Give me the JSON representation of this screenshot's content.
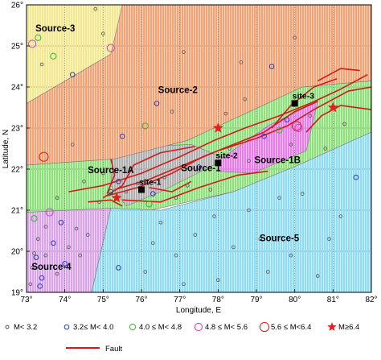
{
  "chart_data": {
    "type": "scatter",
    "xlabel": "Longitude, E",
    "ylabel": "Latitude, N",
    "xlim": [
      73,
      82
    ],
    "ylim": [
      19,
      26
    ],
    "x_ticks": [
      "73°",
      "74°",
      "75°",
      "76°",
      "77°",
      "78°",
      "79°",
      "80°",
      "81°",
      "82°"
    ],
    "y_ticks": [
      "19°",
      "20°",
      "21°",
      "22°",
      "23°",
      "24°",
      "25°",
      "26°"
    ],
    "grid": true,
    "colors": {
      "source_1": "#8ee07a",
      "source_1a": "#b0b0b0",
      "source_1b": "#ea7cec",
      "source_2": "#f5a274",
      "source_3": "#f3e88e",
      "source_4": "#d9a4ea",
      "source_5": "#8fdcf4",
      "fault": "#d11a1a",
      "site": "#000000",
      "star": "#e81e1e"
    },
    "zones": [
      {
        "label": "Source-1",
        "color": "source_1",
        "label_at": [
          77.55,
          21.95
        ],
        "polygon": [
          [
            73,
            22.1
          ],
          [
            75.3,
            22.25
          ],
          [
            77.2,
            22.7
          ],
          [
            80.2,
            24.0
          ],
          [
            82,
            24.15
          ],
          [
            82,
            22.9
          ],
          [
            80.1,
            22.1
          ],
          [
            78.4,
            21.45
          ],
          [
            76,
            20.95
          ],
          [
            73,
            20.95
          ]
        ]
      },
      {
        "label": "Source-1A",
        "color": "source_1a",
        "label_at": [
          75.2,
          21.9
        ],
        "polygon": [
          [
            75.25,
            22.3
          ],
          [
            76.0,
            22.55
          ],
          [
            77.3,
            22.6
          ],
          [
            78.2,
            22.25
          ],
          [
            76.5,
            21.45
          ],
          [
            75.6,
            21.1
          ],
          [
            75.2,
            21.6
          ]
        ]
      },
      {
        "label": "Source-1B",
        "color": "source_1b",
        "label_at": [
          79.55,
          22.15
        ],
        "polygon": [
          [
            78.0,
            22.2
          ],
          [
            79.3,
            23.05
          ],
          [
            80.6,
            23.65
          ],
          [
            80.3,
            22.45
          ],
          [
            78.9,
            21.9
          ],
          [
            78.0,
            21.95
          ]
        ]
      },
      {
        "label": "Source-2",
        "color": "source_2",
        "label_at": [
          76.95,
          23.85
        ],
        "polygon": [
          [
            73,
            26
          ],
          [
            80.0,
            26
          ],
          [
            82,
            26
          ],
          [
            82,
            24.15
          ],
          [
            80.2,
            24.0
          ],
          [
            77.2,
            22.7
          ],
          [
            75.3,
            22.25
          ],
          [
            73,
            22.1
          ],
          [
            73,
            23.6
          ],
          [
            75.2,
            24.8
          ]
        ]
      },
      {
        "label": "Source-3",
        "color": "source_3",
        "label_at": [
          73.75,
          25.35
        ],
        "polygon": [
          [
            73,
            26
          ],
          [
            75.5,
            26
          ],
          [
            75.2,
            24.8
          ],
          [
            73,
            23.6
          ]
        ]
      },
      {
        "label": "Source-4",
        "color": "source_4",
        "label_at": [
          73.65,
          19.55
        ],
        "polygon": [
          [
            73,
            20.95
          ],
          [
            75.2,
            21.05
          ],
          [
            74.7,
            19
          ],
          [
            73,
            19
          ]
        ]
      },
      {
        "label": "Source-5",
        "color": "source_5",
        "label_at": [
          79.6,
          20.25
        ],
        "polygon": [
          [
            75.2,
            21.05
          ],
          [
            76.5,
            21.0
          ],
          [
            78.4,
            21.45
          ],
          [
            80.1,
            22.1
          ],
          [
            82,
            22.9
          ],
          [
            82,
            19
          ],
          [
            74.7,
            19
          ]
        ]
      }
    ],
    "faults": [
      [
        [
          75.1,
          21.35
        ],
        [
          75.9,
          21.55
        ],
        [
          76.8,
          21.9
        ],
        [
          77.6,
          22.3
        ],
        [
          78.4,
          22.6
        ],
        [
          79.2,
          22.9
        ],
        [
          80.0,
          23.4
        ],
        [
          80.6,
          23.65
        ]
      ],
      [
        [
          75.3,
          21.5
        ],
        [
          76.2,
          21.75
        ],
        [
          77.1,
          22.1
        ],
        [
          78.0,
          22.45
        ],
        [
          79.0,
          22.75
        ],
        [
          79.8,
          23.05
        ],
        [
          80.5,
          23.45
        ],
        [
          81.4,
          23.9
        ],
        [
          82,
          24.0
        ]
      ],
      [
        [
          74.1,
          21.45
        ],
        [
          75.0,
          21.6
        ],
        [
          76.0,
          21.9
        ],
        [
          77.0,
          22.3
        ],
        [
          77.9,
          22.7
        ],
        [
          78.7,
          23.0
        ],
        [
          79.6,
          23.3
        ],
        [
          80.4,
          23.6
        ],
        [
          81.2,
          23.95
        ],
        [
          81.9,
          24.3
        ]
      ],
      [
        [
          75.0,
          21.3
        ],
        [
          75.5,
          21.6
        ],
        [
          75.8,
          22.1
        ],
        [
          76.5,
          22.4
        ],
        [
          77.4,
          22.55
        ]
      ],
      [
        [
          75.5,
          21.25
        ],
        [
          76.5,
          21.2
        ],
        [
          77.5,
          21.55
        ],
        [
          78.5,
          21.85
        ],
        [
          79.3,
          21.95
        ]
      ],
      [
        [
          75.1,
          21.4
        ],
        [
          75.3,
          21.85
        ],
        [
          75.2,
          22.25
        ]
      ],
      [
        [
          80.3,
          22.9
        ],
        [
          80.7,
          23.3
        ],
        [
          81.2,
          23.55
        ],
        [
          82,
          23.45
        ]
      ],
      [
        [
          79.4,
          23.0
        ],
        [
          79.9,
          23.55
        ],
        [
          80.5,
          24.0
        ],
        [
          81.1,
          24.2
        ]
      ],
      [
        [
          80.6,
          24.15
        ],
        [
          81.2,
          24.45
        ],
        [
          81.7,
          24.4
        ]
      ],
      [
        [
          76.2,
          21.55
        ],
        [
          76.8,
          21.45
        ],
        [
          77.3,
          21.7
        ]
      ],
      [
        [
          74.6,
          21.2
        ],
        [
          75.2,
          21.25
        ],
        [
          75.5,
          21.1
        ]
      ]
    ],
    "sites": [
      {
        "label": "site-1",
        "x": 76.0,
        "y": 21.5
      },
      {
        "label": "site-2",
        "x": 78.0,
        "y": 22.15
      },
      {
        "label": "site-3",
        "x": 80.0,
        "y": 23.6
      }
    ],
    "large_events": [
      {
        "x": 78.0,
        "y": 23.0
      },
      {
        "x": 81.0,
        "y": 23.5
      },
      {
        "x": 75.35,
        "y": 21.3
      }
    ],
    "events": [
      {
        "x": 73.3,
        "y": 25.2,
        "mag": "c"
      },
      {
        "x": 73.15,
        "y": 25.05,
        "mag": "d"
      },
      {
        "x": 75.2,
        "y": 24.95,
        "mag": "d"
      },
      {
        "x": 73.7,
        "y": 24.75,
        "mag": "c"
      },
      {
        "x": 74.2,
        "y": 24.3,
        "mag": "b"
      },
      {
        "x": 73.4,
        "y": 24.55,
        "mag": "a"
      },
      {
        "x": 75.0,
        "y": 25.3,
        "mag": "a"
      },
      {
        "x": 73.45,
        "y": 22.3,
        "mag": "e"
      },
      {
        "x": 74.8,
        "y": 25.9,
        "mag": "a"
      },
      {
        "x": 76.1,
        "y": 23.05,
        "mag": "c"
      },
      {
        "x": 76.4,
        "y": 23.6,
        "mag": "b"
      },
      {
        "x": 77.1,
        "y": 24.85,
        "mag": "a"
      },
      {
        "x": 78.6,
        "y": 24.6,
        "mag": "a"
      },
      {
        "x": 79.4,
        "y": 24.5,
        "mag": "b"
      },
      {
        "x": 78.2,
        "y": 23.35,
        "mag": "a"
      },
      {
        "x": 80.0,
        "y": 25.2,
        "mag": "a"
      },
      {
        "x": 76.8,
        "y": 23.4,
        "mag": "a"
      },
      {
        "x": 75.5,
        "y": 22.8,
        "mag": "b"
      },
      {
        "x": 74.2,
        "y": 22.6,
        "mag": "a"
      },
      {
        "x": 78.7,
        "y": 23.7,
        "mag": "a"
      },
      {
        "x": 75.0,
        "y": 21.9,
        "mag": "a"
      },
      {
        "x": 75.4,
        "y": 21.7,
        "mag": "b"
      },
      {
        "x": 75.6,
        "y": 21.45,
        "mag": "a"
      },
      {
        "x": 75.9,
        "y": 21.65,
        "mag": "a"
      },
      {
        "x": 76.3,
        "y": 21.4,
        "mag": "b"
      },
      {
        "x": 76.6,
        "y": 21.8,
        "mag": "a"
      },
      {
        "x": 77.2,
        "y": 21.6,
        "mag": "a"
      },
      {
        "x": 77.5,
        "y": 22.05,
        "mag": "b"
      },
      {
        "x": 78.3,
        "y": 22.5,
        "mag": "a"
      },
      {
        "x": 78.8,
        "y": 22.2,
        "mag": "a"
      },
      {
        "x": 79.2,
        "y": 22.8,
        "mag": "b"
      },
      {
        "x": 79.6,
        "y": 22.95,
        "mag": "c"
      },
      {
        "x": 79.9,
        "y": 22.6,
        "mag": "a"
      },
      {
        "x": 80.1,
        "y": 23.0,
        "mag": "d"
      },
      {
        "x": 80.05,
        "y": 23.05,
        "mag": "e"
      },
      {
        "x": 79.8,
        "y": 23.2,
        "mag": "b"
      },
      {
        "x": 80.4,
        "y": 23.3,
        "mag": "a"
      },
      {
        "x": 81.3,
        "y": 23.1,
        "mag": "a"
      },
      {
        "x": 76.2,
        "y": 21.15,
        "mag": "c"
      },
      {
        "x": 74.5,
        "y": 21.7,
        "mag": "a"
      },
      {
        "x": 73.8,
        "y": 21.3,
        "mag": "a"
      },
      {
        "x": 77.8,
        "y": 21.5,
        "mag": "a"
      },
      {
        "x": 76.9,
        "y": 21.3,
        "mag": "a"
      },
      {
        "x": 75.2,
        "y": 21.45,
        "mag": "b"
      },
      {
        "x": 74.9,
        "y": 21.2,
        "mag": "a"
      },
      {
        "x": 80.8,
        "y": 22.5,
        "mag": "a"
      },
      {
        "x": 73.2,
        "y": 20.8,
        "mag": "c"
      },
      {
        "x": 73.5,
        "y": 20.6,
        "mag": "a"
      },
      {
        "x": 73.9,
        "y": 20.7,
        "mag": "b"
      },
      {
        "x": 74.3,
        "y": 20.55,
        "mag": "a"
      },
      {
        "x": 73.3,
        "y": 20.3,
        "mag": "a"
      },
      {
        "x": 73.7,
        "y": 20.2,
        "mag": "b"
      },
      {
        "x": 74.1,
        "y": 20.1,
        "mag": "a"
      },
      {
        "x": 73.25,
        "y": 19.85,
        "mag": "b"
      },
      {
        "x": 73.5,
        "y": 19.9,
        "mag": "a"
      },
      {
        "x": 73.15,
        "y": 19.6,
        "mag": "a"
      },
      {
        "x": 73.4,
        "y": 19.35,
        "mag": "b"
      },
      {
        "x": 73.1,
        "y": 19.2,
        "mag": "a"
      },
      {
        "x": 73.8,
        "y": 19.45,
        "mag": "a"
      },
      {
        "x": 74.4,
        "y": 19.9,
        "mag": "a"
      },
      {
        "x": 73.6,
        "y": 20.95,
        "mag": "d"
      },
      {
        "x": 74.0,
        "y": 19.7,
        "mag": "b"
      },
      {
        "x": 73.35,
        "y": 19.15,
        "mag": "b"
      },
      {
        "x": 73.2,
        "y": 19.95,
        "mag": "a"
      },
      {
        "x": 74.6,
        "y": 20.4,
        "mag": "a"
      },
      {
        "x": 76.5,
        "y": 20.7,
        "mag": "a"
      },
      {
        "x": 76.1,
        "y": 19.5,
        "mag": "a"
      },
      {
        "x": 76.9,
        "y": 19.9,
        "mag": "a"
      },
      {
        "x": 77.9,
        "y": 20.85,
        "mag": "a"
      },
      {
        "x": 78.4,
        "y": 20.1,
        "mag": "a"
      },
      {
        "x": 79.1,
        "y": 20.3,
        "mag": "a"
      },
      {
        "x": 79.6,
        "y": 21.3,
        "mag": "a"
      },
      {
        "x": 80.2,
        "y": 21.4,
        "mag": "a"
      },
      {
        "x": 81.2,
        "y": 20.85,
        "mag": "a"
      },
      {
        "x": 80.6,
        "y": 19.4,
        "mag": "a"
      },
      {
        "x": 81.6,
        "y": 21.8,
        "mag": "b"
      },
      {
        "x": 78.0,
        "y": 19.3,
        "mag": "a"
      },
      {
        "x": 75.4,
        "y": 19.6,
        "mag": "b"
      },
      {
        "x": 77.4,
        "y": 20.4,
        "mag": "a"
      },
      {
        "x": 79.9,
        "y": 19.9,
        "mag": "a"
      },
      {
        "x": 80.9,
        "y": 20.3,
        "mag": "a"
      },
      {
        "x": 78.8,
        "y": 21.0,
        "mag": "a"
      },
      {
        "x": 77.1,
        "y": 19.2,
        "mag": "a"
      },
      {
        "x": 76.3,
        "y": 20.2,
        "mag": "a"
      },
      {
        "x": 79.3,
        "y": 19.5,
        "mag": "a"
      }
    ],
    "legend": {
      "position": "bottom",
      "magnitude_classes": [
        {
          "key": "a",
          "label": "M< 3.2",
          "color": "#555555"
        },
        {
          "key": "b",
          "label": "3.2≤ M< 4.0",
          "color": "#2a3ab8"
        },
        {
          "key": "c",
          "label": "4.0 ≤ M< 4.8",
          "color": "#35b82f"
        },
        {
          "key": "d",
          "label": "4.8 ≤ M< 5.6",
          "color": "#d13ad9"
        },
        {
          "key": "e",
          "label": "5.6 ≤ M<6.4",
          "color": "#e11b1b"
        },
        {
          "key": "f",
          "label": "M≥6.4",
          "color": "#e81e1e"
        }
      ],
      "fault_label": "Fault"
    }
  }
}
